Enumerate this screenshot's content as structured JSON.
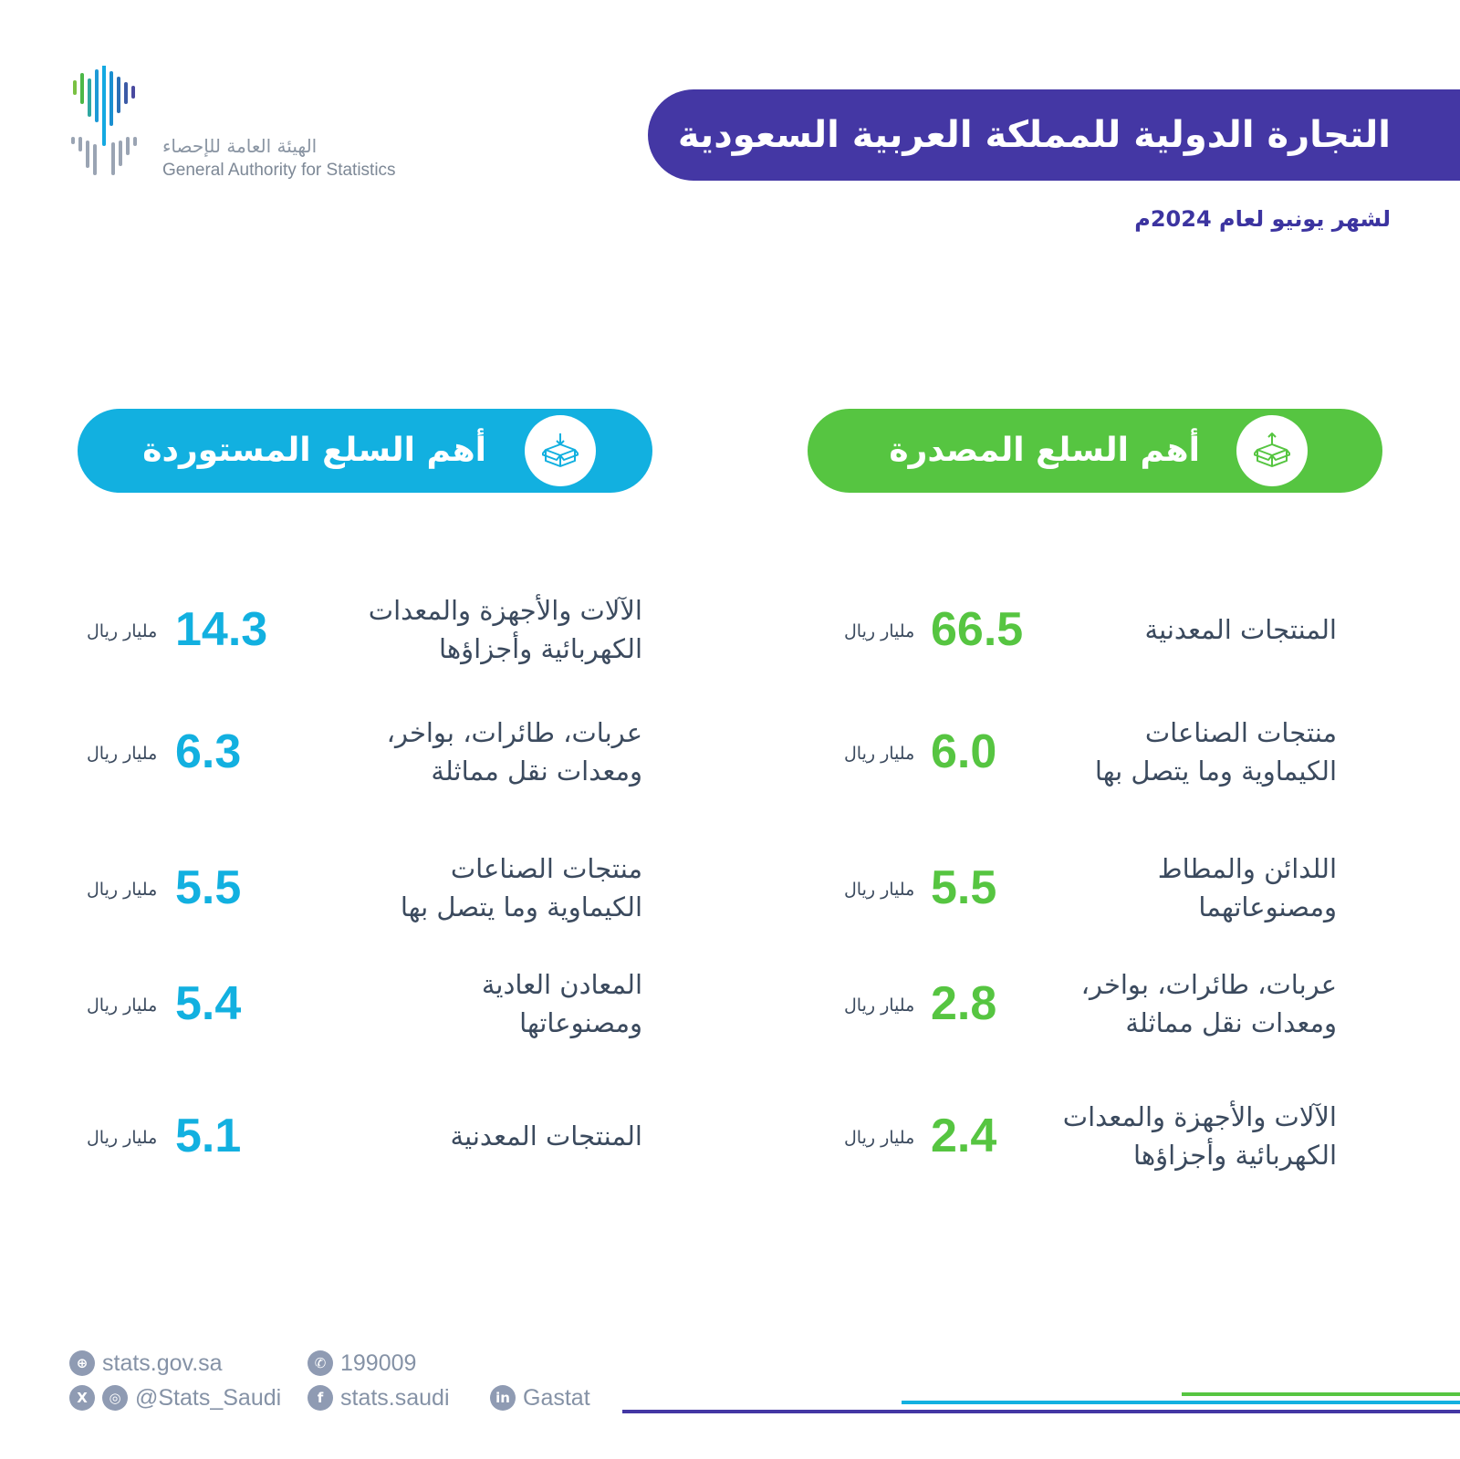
{
  "org": {
    "name_ar": "الهيئة العامة للإحصاء",
    "name_en": "General Authority for Statistics"
  },
  "title": "التجارة الدولية للمملكة العربية السعودية",
  "subtitle": "لشهر يونيو لعام 2024م",
  "colors": {
    "title_banner": "#4437a4",
    "imports_accent": "#12b0e0",
    "exports_accent": "#56c541",
    "text": "#3b4a5e"
  },
  "imports": {
    "heading": "أهم السلع المستوردة",
    "icon": "box-import-icon",
    "unit": "مليار ريال",
    "items": [
      {
        "label": "الآلات والأجهزة والمعدات\nالكهربائية وأجزاؤها",
        "value": "14.3"
      },
      {
        "label": "عربات، طائرات، بواخر،\nومعدات نقل مماثلة",
        "value": "6.3"
      },
      {
        "label": "منتجات الصناعات\nالكيماوية وما يتصل بها",
        "value": "5.5"
      },
      {
        "label": "المعادن العادية\nومصنوعاتها",
        "value": "5.4"
      },
      {
        "label": "المنتجات المعدنية",
        "value": "5.1"
      }
    ]
  },
  "exports": {
    "heading": "أهم السلع المصدرة",
    "icon": "box-export-icon",
    "unit": "مليار ريال",
    "items": [
      {
        "label": "المنتجات المعدنية",
        "value": "66.5"
      },
      {
        "label": "منتجات الصناعات\nالكيماوية وما يتصل بها",
        "value": "6.0"
      },
      {
        "label": "اللدائن والمطاط\nومصنوعاتهما",
        "value": "5.5"
      },
      {
        "label": "عربات، طائرات، بواخر،\nومعدات نقل مماثلة",
        "value": "2.8"
      },
      {
        "label": "الآلات والأجهزة والمعدات\nالكهربائية وأجزاؤها",
        "value": "2.4"
      }
    ]
  },
  "footer": {
    "website": "stats.gov.sa",
    "phone": "199009",
    "handle": "@Stats_Saudi",
    "facebook": "stats.saudi",
    "linkedin": "Gastat"
  }
}
